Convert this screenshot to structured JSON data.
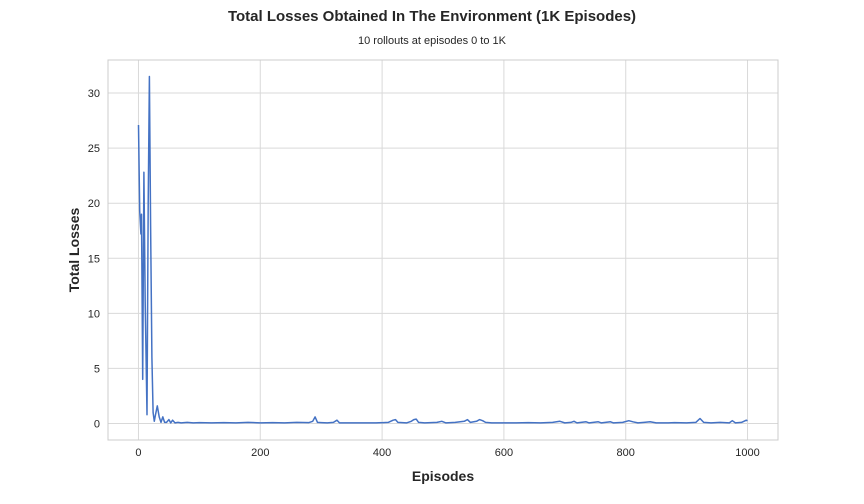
{
  "chart_data": {
    "type": "line",
    "title": "Total Losses Obtained In The Environment (1K Episodes)",
    "subtitle": "10 rollouts at episodes 0 to 1K",
    "xlabel": "Episodes",
    "ylabel": "Total Losses",
    "xlim": [
      -50,
      1050
    ],
    "ylim": [
      -1.5,
      33
    ],
    "xticks": [
      0,
      200,
      400,
      600,
      800,
      1000
    ],
    "yticks": [
      0,
      5,
      10,
      15,
      20,
      25,
      30
    ],
    "grid": true,
    "legend": "none",
    "series": [
      {
        "color": "#4472c4",
        "points": [
          [
            0,
            27.1
          ],
          [
            2,
            19.3
          ],
          [
            4,
            17.2
          ],
          [
            5,
            19.0
          ],
          [
            7,
            4.0
          ],
          [
            9,
            22.8
          ],
          [
            11,
            11.0
          ],
          [
            14,
            0.8
          ],
          [
            16,
            20.0
          ],
          [
            18,
            31.5
          ],
          [
            20,
            18.0
          ],
          [
            22,
            6.0
          ],
          [
            24,
            1.0
          ],
          [
            26,
            0.2
          ],
          [
            28,
            0.8
          ],
          [
            31,
            1.6
          ],
          [
            34,
            0.6
          ],
          [
            37,
            0.1
          ],
          [
            40,
            0.6
          ],
          [
            43,
            0.1
          ],
          [
            46,
            0.1
          ],
          [
            50,
            0.35
          ],
          [
            53,
            0.05
          ],
          [
            56,
            0.3
          ],
          [
            60,
            0.05
          ],
          [
            65,
            0.1
          ],
          [
            70,
            0.05
          ],
          [
            80,
            0.1
          ],
          [
            90,
            0.05
          ],
          [
            100,
            0.08
          ],
          [
            120,
            0.05
          ],
          [
            140,
            0.08
          ],
          [
            160,
            0.05
          ],
          [
            180,
            0.1
          ],
          [
            200,
            0.05
          ],
          [
            220,
            0.08
          ],
          [
            240,
            0.05
          ],
          [
            260,
            0.1
          ],
          [
            280,
            0.08
          ],
          [
            286,
            0.2
          ],
          [
            290,
            0.6
          ],
          [
            294,
            0.1
          ],
          [
            300,
            0.08
          ],
          [
            310,
            0.05
          ],
          [
            320,
            0.1
          ],
          [
            326,
            0.3
          ],
          [
            330,
            0.05
          ],
          [
            350,
            0.05
          ],
          [
            370,
            0.05
          ],
          [
            390,
            0.05
          ],
          [
            410,
            0.1
          ],
          [
            418,
            0.3
          ],
          [
            422,
            0.35
          ],
          [
            426,
            0.1
          ],
          [
            440,
            0.05
          ],
          [
            448,
            0.2
          ],
          [
            452,
            0.35
          ],
          [
            456,
            0.4
          ],
          [
            460,
            0.1
          ],
          [
            470,
            0.05
          ],
          [
            490,
            0.1
          ],
          [
            498,
            0.2
          ],
          [
            505,
            0.05
          ],
          [
            520,
            0.1
          ],
          [
            535,
            0.2
          ],
          [
            540,
            0.35
          ],
          [
            545,
            0.1
          ],
          [
            555,
            0.2
          ],
          [
            560,
            0.35
          ],
          [
            565,
            0.25
          ],
          [
            570,
            0.1
          ],
          [
            580,
            0.05
          ],
          [
            600,
            0.05
          ],
          [
            620,
            0.05
          ],
          [
            640,
            0.08
          ],
          [
            660,
            0.05
          ],
          [
            680,
            0.1
          ],
          [
            692,
            0.2
          ],
          [
            700,
            0.05
          ],
          [
            710,
            0.1
          ],
          [
            715,
            0.2
          ],
          [
            720,
            0.05
          ],
          [
            735,
            0.15
          ],
          [
            740,
            0.05
          ],
          [
            755,
            0.15
          ],
          [
            760,
            0.05
          ],
          [
            775,
            0.15
          ],
          [
            780,
            0.05
          ],
          [
            795,
            0.1
          ],
          [
            805,
            0.25
          ],
          [
            812,
            0.15
          ],
          [
            820,
            0.05
          ],
          [
            830,
            0.1
          ],
          [
            840,
            0.15
          ],
          [
            850,
            0.05
          ],
          [
            870,
            0.05
          ],
          [
            880,
            0.08
          ],
          [
            900,
            0.05
          ],
          [
            915,
            0.1
          ],
          [
            922,
            0.45
          ],
          [
            928,
            0.1
          ],
          [
            940,
            0.05
          ],
          [
            955,
            0.1
          ],
          [
            970,
            0.05
          ],
          [
            975,
            0.25
          ],
          [
            980,
            0.05
          ],
          [
            990,
            0.1
          ],
          [
            998,
            0.3
          ],
          [
            1000,
            0.25
          ]
        ]
      }
    ]
  }
}
